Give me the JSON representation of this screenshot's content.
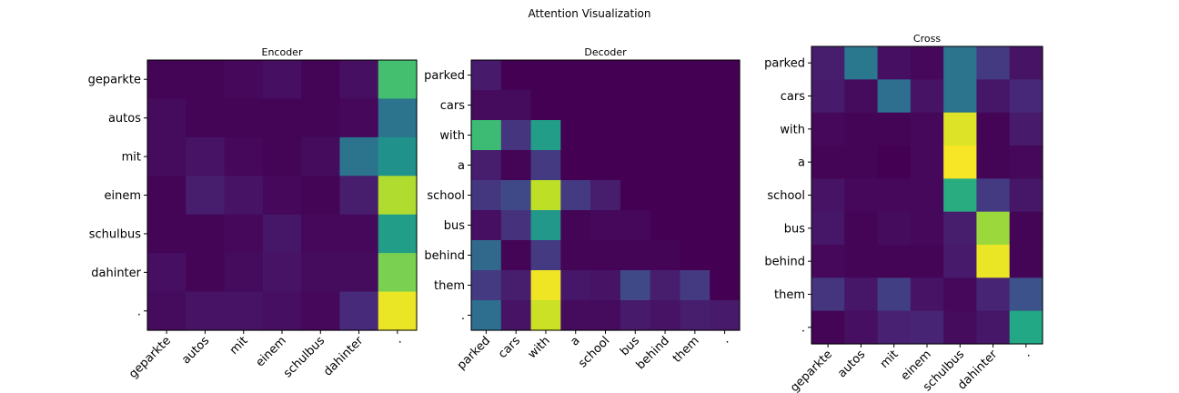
{
  "figure": {
    "title": "Attention Visualization"
  },
  "chart_data": [
    {
      "type": "heatmap",
      "title": "Encoder",
      "colormap": "viridis",
      "vmin": 0,
      "vmax": 1,
      "x_labels": [
        "geparkte",
        "autos",
        "mit",
        "einem",
        "schulbus",
        "dahinter",
        "."
      ],
      "y_labels": [
        "geparkte",
        "autos",
        "mit",
        "einem",
        "schulbus",
        "dahinter",
        "."
      ],
      "values": [
        [
          0.01,
          0.01,
          0.02,
          0.04,
          0.01,
          0.04,
          0.7
        ],
        [
          0.03,
          0.01,
          0.01,
          0.01,
          0.01,
          0.02,
          0.38
        ],
        [
          0.03,
          0.05,
          0.02,
          0.01,
          0.03,
          0.38,
          0.5
        ],
        [
          0.01,
          0.08,
          0.05,
          0.02,
          0.01,
          0.08,
          0.88
        ],
        [
          0.01,
          0.01,
          0.02,
          0.06,
          0.02,
          0.02,
          0.55
        ],
        [
          0.04,
          0.01,
          0.03,
          0.05,
          0.03,
          0.03,
          0.8
        ],
        [
          0.03,
          0.05,
          0.05,
          0.04,
          0.02,
          0.12,
          0.97
        ]
      ]
    },
    {
      "type": "heatmap",
      "title": "Decoder",
      "colormap": "viridis",
      "vmin": 0,
      "vmax": 1,
      "x_labels": [
        "parked",
        "cars",
        "with",
        "a",
        "school",
        "bus",
        "behind",
        "them",
        "."
      ],
      "y_labels": [
        "parked",
        "cars",
        "with",
        "a",
        "school",
        "bus",
        "behind",
        "them",
        "."
      ],
      "values": [
        [
          0.07,
          0.0,
          0.0,
          0.0,
          0.0,
          0.0,
          0.0,
          0.0,
          0.0
        ],
        [
          0.03,
          0.03,
          0.0,
          0.0,
          0.0,
          0.0,
          0.0,
          0.0,
          0.0
        ],
        [
          0.68,
          0.15,
          0.55,
          0.0,
          0.0,
          0.0,
          0.0,
          0.0,
          0.0
        ],
        [
          0.08,
          0.01,
          0.17,
          0.0,
          0.0,
          0.0,
          0.0,
          0.0,
          0.0
        ],
        [
          0.16,
          0.22,
          0.9,
          0.17,
          0.08,
          0.0,
          0.0,
          0.0,
          0.0
        ],
        [
          0.04,
          0.14,
          0.53,
          0.01,
          0.02,
          0.02,
          0.0,
          0.0,
          0.0
        ],
        [
          0.34,
          0.01,
          0.17,
          0.01,
          0.01,
          0.01,
          0.01,
          0.0,
          0.0
        ],
        [
          0.17,
          0.08,
          0.98,
          0.06,
          0.05,
          0.22,
          0.08,
          0.17,
          0.0
        ],
        [
          0.36,
          0.05,
          0.92,
          0.03,
          0.03,
          0.07,
          0.05,
          0.08,
          0.07
        ]
      ]
    },
    {
      "type": "heatmap",
      "title": "Cross",
      "colormap": "viridis",
      "vmin": 0,
      "vmax": 1,
      "x_labels": [
        "geparkte",
        "autos",
        "mit",
        "einem",
        "schulbus",
        "dahinter",
        "."
      ],
      "y_labels": [
        "parked",
        "cars",
        "with",
        "a",
        "school",
        "bus",
        "behind",
        "them",
        "."
      ],
      "values": [
        [
          0.08,
          0.4,
          0.04,
          0.02,
          0.38,
          0.17,
          0.05
        ],
        [
          0.07,
          0.03,
          0.36,
          0.05,
          0.38,
          0.06,
          0.11
        ],
        [
          0.02,
          0.01,
          0.01,
          0.02,
          0.95,
          0.01,
          0.07
        ],
        [
          0.01,
          0.01,
          0.0,
          0.02,
          0.99,
          0.01,
          0.02
        ],
        [
          0.05,
          0.02,
          0.02,
          0.02,
          0.62,
          0.17,
          0.06
        ],
        [
          0.06,
          0.01,
          0.03,
          0.02,
          0.08,
          0.85,
          0.01
        ],
        [
          0.02,
          0.01,
          0.01,
          0.01,
          0.07,
          0.97,
          0.01
        ],
        [
          0.15,
          0.06,
          0.18,
          0.05,
          0.02,
          0.1,
          0.25
        ],
        [
          0.01,
          0.04,
          0.09,
          0.1,
          0.03,
          0.06,
          0.6
        ]
      ]
    }
  ]
}
